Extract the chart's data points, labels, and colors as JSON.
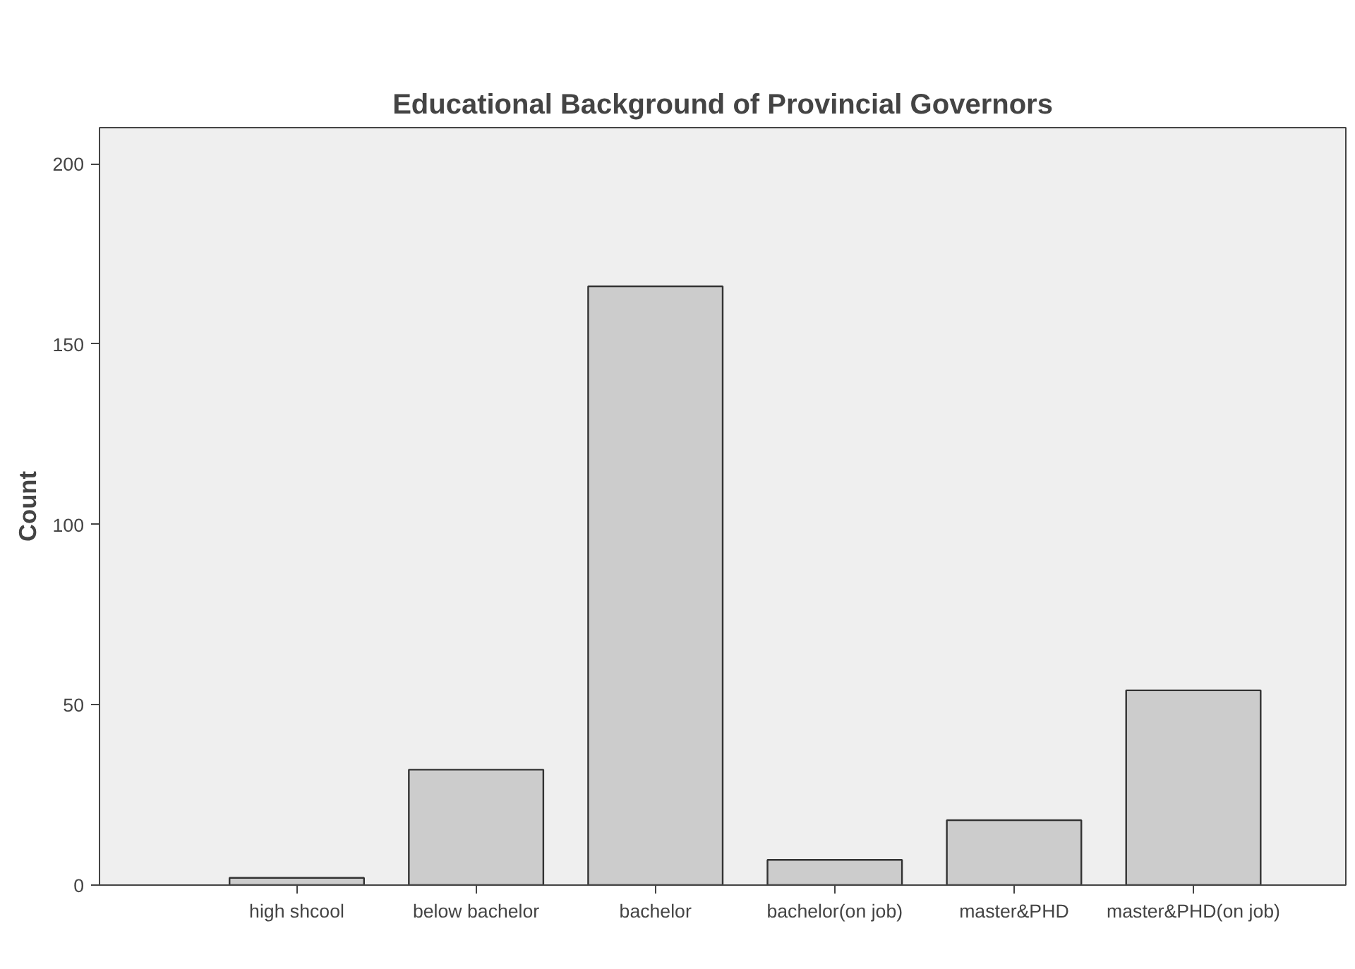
{
  "chart_data": {
    "type": "bar",
    "title": "Educational Background of Provincial Governors",
    "ylabel": "Count",
    "categories": [
      "high shcool",
      "below bachelor",
      "bachelor",
      "bachelor(on job)",
      "master&PHD",
      "master&PHD(on job)"
    ],
    "values": [
      2,
      32,
      166,
      7,
      18,
      54
    ],
    "color": "#cccccc",
    "ylim": [
      0,
      210
    ],
    "yticks": [
      0,
      50,
      100,
      150,
      200
    ],
    "grid": false
  }
}
